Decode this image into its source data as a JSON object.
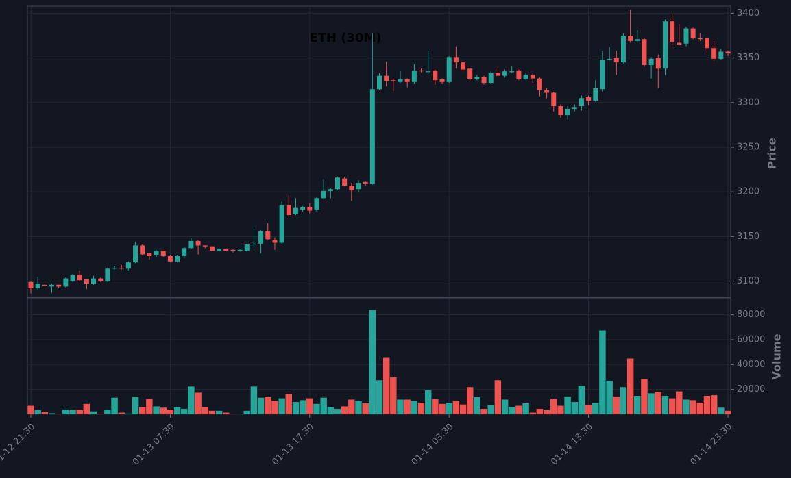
{
  "chart_data": {
    "type": "candlestick",
    "title": "ETH (30M)",
    "ylabel": "Price",
    "volume_label": "Volume",
    "up_color": "#26a69a",
    "down_color": "#ef5350",
    "grid": true,
    "x": [
      "01-12 21:30",
      null,
      null,
      null,
      null,
      null,
      null,
      null,
      null,
      null,
      null,
      null,
      null,
      null,
      null,
      null,
      null,
      null,
      null,
      null,
      "01-13 07:30",
      null,
      null,
      null,
      null,
      null,
      null,
      null,
      null,
      null,
      null,
      null,
      null,
      null,
      null,
      null,
      null,
      null,
      null,
      null,
      "01-13 17:30",
      null,
      null,
      null,
      null,
      null,
      null,
      null,
      null,
      null,
      null,
      null,
      null,
      null,
      null,
      null,
      null,
      null,
      null,
      null,
      "01-14 03:30",
      null,
      null,
      null,
      null,
      null,
      null,
      null,
      null,
      null,
      null,
      null,
      null,
      null,
      null,
      null,
      null,
      null,
      null,
      null,
      "01-14 13:30",
      null,
      null,
      null,
      null,
      null,
      null,
      null,
      null,
      null,
      null,
      null,
      null,
      null,
      null,
      null,
      null,
      null,
      null,
      null,
      "01-14 23:30"
    ],
    "open": [
      3099,
      3092,
      3096,
      3094,
      3096,
      3094,
      3100,
      3107,
      3102,
      3097,
      3103,
      3100,
      3114,
      3115,
      3114,
      3121,
      3140,
      3131,
      3129,
      3134,
      3128,
      3122,
      3128,
      3137,
      3145,
      3140,
      3139,
      3134,
      3136,
      3135,
      3134,
      3134,
      3141,
      3142,
      3156,
      3146,
      3143,
      3185,
      3175,
      3180,
      3183,
      3180,
      3193,
      3201,
      3203,
      3215,
      3207,
      3203,
      3211,
      3209,
      3315,
      3330,
      3325,
      3323,
      3326,
      3323,
      3336,
      3334,
      3336,
      3326,
      3323,
      3351,
      3345,
      3338,
      3326,
      3329,
      3322,
      3333,
      3330,
      3334,
      3336,
      3326,
      3331,
      3327,
      3314,
      3311,
      3296,
      3286,
      3293,
      3296,
      3306,
      3302,
      3315,
      3348,
      3350,
      3345,
      3375,
      3369,
      3371,
      3342,
      3350,
      3338,
      3391,
      3367,
      3366,
      3383,
      3372,
      3372,
      3361,
      3349,
      3357
    ],
    "high": [
      3100,
      3105,
      3097,
      3097,
      3096,
      3104,
      3108,
      3112,
      3102,
      3106,
      3104,
      3115,
      3117,
      3118,
      3122,
      3144,
      3141,
      3132,
      3135,
      3134,
      3129,
      3129,
      3138,
      3148,
      3146,
      3140,
      3139,
      3137,
      3137,
      3136,
      3136,
      3142,
      3162,
      3157,
      3165,
      3149,
      3189,
      3196,
      3193,
      3184,
      3187,
      3194,
      3214,
      3204,
      3217,
      3217,
      3210,
      3213,
      3212,
      3378,
      3333,
      3346,
      3327,
      3335,
      3327,
      3343,
      3338,
      3358,
      3337,
      3327,
      3352,
      3363,
      3346,
      3339,
      3331,
      3330,
      3335,
      3340,
      3337,
      3341,
      3337,
      3333,
      3333,
      3328,
      3316,
      3312,
      3298,
      3296,
      3298,
      3308,
      3308,
      3325,
      3358,
      3362,
      3358,
      3378,
      3404,
      3381,
      3372,
      3351,
      3354,
      3393,
      3400,
      3388,
      3385,
      3384,
      3378,
      3374,
      3369,
      3360,
      3358
    ],
    "low": [
      3086,
      3090,
      3094,
      3087,
      3092,
      3093,
      3099,
      3100,
      3091,
      3096,
      3099,
      3099,
      3113,
      3113,
      3112,
      3120,
      3129,
      3124,
      3127,
      3127,
      3121,
      3121,
      3126,
      3136,
      3130,
      3137,
      3133,
      3133,
      3133,
      3132,
      3133,
      3133,
      3137,
      3131,
      3146,
      3135,
      3142,
      3172,
      3174,
      3178,
      3176,
      3178,
      3192,
      3193,
      3202,
      3206,
      3190,
      3200,
      3207,
      3208,
      3314,
      3318,
      3313,
      3322,
      3317,
      3321,
      3334,
      3332,
      3320,
      3321,
      3322,
      3338,
      3335,
      3325,
      3325,
      3320,
      3321,
      3329,
      3328,
      3333,
      3325,
      3325,
      3322,
      3307,
      3305,
      3290,
      3283,
      3281,
      3290,
      3291,
      3297,
      3301,
      3312,
      3347,
      3331,
      3344,
      3367,
      3367,
      3340,
      3327,
      3316,
      3331,
      3361,
      3364,
      3363,
      3371,
      3369,
      3356,
      3347,
      3348,
      3352
    ],
    "close": [
      3092,
      3097,
      3095,
      3096,
      3094,
      3103,
      3107,
      3101,
      3097,
      3103,
      3100,
      3114,
      3115,
      3114,
      3121,
      3140,
      3130,
      3128,
      3134,
      3128,
      3122,
      3128,
      3137,
      3145,
      3140,
      3139,
      3134,
      3136,
      3134,
      3134,
      3135,
      3141,
      3142,
      3156,
      3147,
      3143,
      3185,
      3174,
      3182,
      3183,
      3179,
      3193,
      3201,
      3203,
      3216,
      3207,
      3202,
      3210,
      3209,
      3315,
      3330,
      3324,
      3324,
      3326,
      3323,
      3336,
      3335,
      3335,
      3325,
      3323,
      3351,
      3345,
      3337,
      3326,
      3329,
      3322,
      3333,
      3330,
      3335,
      3335,
      3326,
      3331,
      3327,
      3314,
      3311,
      3296,
      3286,
      3293,
      3295,
      3305,
      3302,
      3316,
      3348,
      3349,
      3345,
      3375,
      3369,
      3371,
      3342,
      3349,
      3338,
      3391,
      3368,
      3365,
      3383,
      3372,
      3371,
      3361,
      3349,
      3357,
      3355
    ],
    "volume": [
      7000,
      3500,
      2000,
      1000,
      500,
      4000,
      3500,
      3500,
      8500,
      2500,
      500,
      4000,
      13500,
      1500,
      800,
      14000,
      6000,
      12500,
      6500,
      5500,
      4000,
      6000,
      4500,
      22500,
      17500,
      6000,
      3000,
      3000,
      1500,
      500,
      300,
      3000,
      22500,
      13500,
      14000,
      11000,
      13000,
      16500,
      10000,
      11500,
      13000,
      8500,
      13500,
      6000,
      4500,
      6500,
      12000,
      11000,
      9000,
      84000,
      27500,
      45500,
      30000,
      12000,
      12000,
      11000,
      9500,
      19500,
      12500,
      8500,
      9500,
      11000,
      8000,
      22000,
      14000,
      4500,
      7500,
      27500,
      12000,
      6000,
      7000,
      9000,
      1500,
      4500,
      3500,
      12500,
      7000,
      14500,
      10000,
      23000,
      7500,
      9500,
      67500,
      27000,
      14500,
      22000,
      45000,
      15000,
      28500,
      17000,
      18000,
      15000,
      13000,
      18500,
      12000,
      11500,
      9500,
      15000,
      15500,
      5500,
      3000
    ],
    "ylim": [
      3082,
      3408
    ],
    "yticks": [
      3100,
      3150,
      3200,
      3250,
      3300,
      3350,
      3400
    ],
    "volume_ylim": [
      0,
      93000
    ],
    "volume_yticks": [
      20000,
      40000,
      60000,
      80000
    ]
  }
}
